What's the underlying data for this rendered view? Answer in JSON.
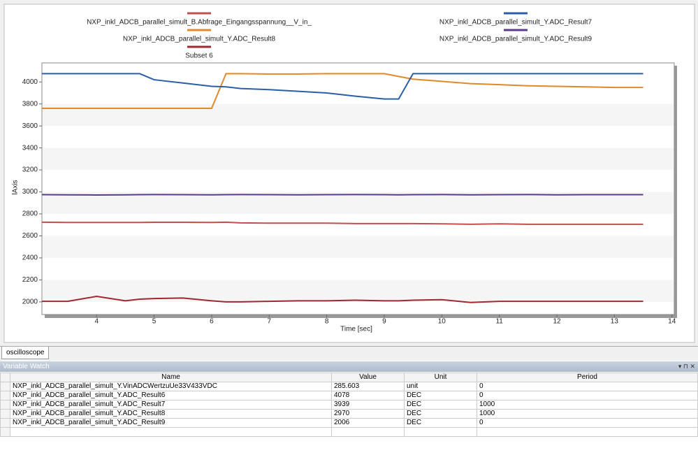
{
  "chart_data": {
    "type": "line",
    "x_label": "Time [sec]",
    "y_label": "lAxis",
    "x": [
      3.05,
      3.5,
      4,
      4.5,
      4.75,
      5,
      5.5,
      6,
      6.25,
      6.5,
      7,
      7.5,
      8,
      8.5,
      9,
      9.25,
      9.5,
      10,
      10.5,
      11,
      11.5,
      12,
      12.5,
      13,
      13.5
    ],
    "series": [
      {
        "name": "NXP_inkl_ADCB_parallel_simult_B.Abfrage_Eingangsspannung__V_in_",
        "color": "#c0504d",
        "values": [
          2725,
          2722,
          2722,
          2722,
          2722,
          2724,
          2724,
          2722,
          2725,
          2718,
          2716,
          2716,
          2716,
          2712,
          2712,
          2712,
          2712,
          2710,
          2706,
          2710,
          2706,
          2706,
          2706,
          2706,
          2706
        ]
      },
      {
        "name": "NXP_inkl_ADCB_parallel_simult_Y.ADC_Result8",
        "color": "#e0892b",
        "values": [
          3760,
          3760,
          3760,
          3760,
          3760,
          3760,
          3760,
          3760,
          4075,
          4075,
          4072,
          4072,
          4075,
          4075,
          4075,
          4050,
          4025,
          4005,
          3985,
          3975,
          3965,
          3960,
          3955,
          3950,
          3950
        ]
      },
      {
        "name": "Subset 6",
        "color": "#a02830",
        "values": [
          2005,
          2005,
          2050,
          2010,
          2025,
          2030,
          2035,
          2010,
          2000,
          2000,
          2005,
          2010,
          2010,
          2015,
          2010,
          2010,
          2015,
          2020,
          1995,
          2005,
          2005,
          2005,
          2005,
          2005,
          2005
        ]
      },
      {
        "name": "NXP_inkl_ADCB_parallel_simult_Y.ADC_Result7",
        "color": "#2a5ea8",
        "values": [
          4075,
          4075,
          4075,
          4075,
          4075,
          4020,
          3990,
          3960,
          3955,
          3940,
          3930,
          3915,
          3900,
          3870,
          3845,
          3845,
          4075,
          4075,
          4075,
          4075,
          4075,
          4075,
          4075,
          4075,
          4075
        ]
      },
      {
        "name": "NXP_inkl_ADCB_parallel_simult_Y.ADC_Result9",
        "color": "#5b3a8c",
        "values": [
          2975,
          2973,
          2972,
          2973,
          2975,
          2976,
          2975,
          2973,
          2975,
          2976,
          2975,
          2973,
          2975,
          2976,
          2975,
          2973,
          2975,
          2976,
          2973,
          2975,
          2976,
          2973,
          2975,
          2975,
          2975
        ]
      }
    ],
    "xlim": [
      3.05,
      14.04
    ],
    "xticks": [
      4,
      5,
      6,
      7,
      8,
      9,
      10,
      11,
      12,
      13,
      14
    ],
    "ylim": [
      1885,
      4173
    ],
    "yticks": [
      2000,
      2200,
      2400,
      2600,
      2800,
      3000,
      3200,
      3400,
      3600,
      3800,
      4000
    ],
    "grid": true
  },
  "tab": "oscilloscope",
  "panel": {
    "title": "Variable Watch"
  },
  "table": {
    "columns": [
      "Name",
      "Value",
      "Unit",
      "Period"
    ],
    "rows": [
      [
        "NXP_inkl_ADCB_parallel_simult_Y.VinADCWertzuUe33V433VDC",
        "285.603",
        "unit",
        "0"
      ],
      [
        "NXP_inkl_ADCB_parallel_simult_Y.ADC_Result6",
        "4078",
        "DEC",
        "0"
      ],
      [
        "NXP_inkl_ADCB_parallel_simult_Y.ADC_Result7",
        "3939",
        "DEC",
        "1000"
      ],
      [
        "NXP_inkl_ADCB_parallel_simult_Y.ADC_Result8",
        "2970",
        "DEC",
        "1000"
      ],
      [
        "NXP_inkl_ADCB_parallel_simult_Y.ADC_Result9",
        "2006",
        "DEC",
        "0"
      ]
    ]
  }
}
